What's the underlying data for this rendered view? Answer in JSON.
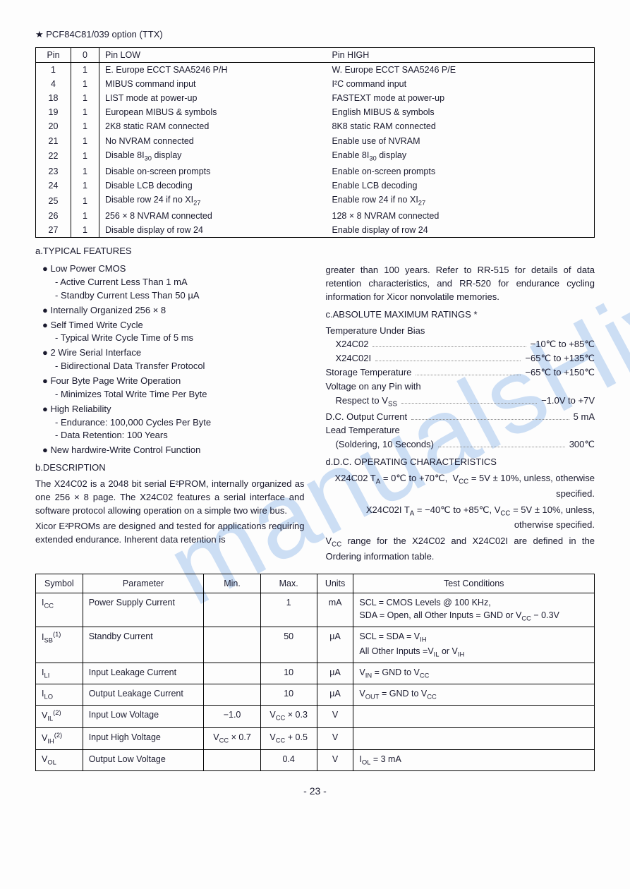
{
  "heading": "★ PCF84C81/039 option (TTX)",
  "pinTable": {
    "headers": [
      "Pin",
      "0",
      "Pin LOW",
      "Pin HIGH"
    ],
    "rows": [
      [
        "1",
        "1",
        "E. Europe ECCT  SAA5246 P/H",
        "W. Europe ECCT SAA5246 P/E"
      ],
      [
        "4",
        "1",
        "MIBUS command input",
        "I²C command input"
      ],
      [
        "18",
        "1",
        "LIST mode at power-up",
        "FASTEXT mode at power-up"
      ],
      [
        "19",
        "1",
        "European MIBUS & symbols",
        "English MIBUS & symbols"
      ],
      [
        "20",
        "1",
        "2K8 static RAM connected",
        "8K8 static RAM connected"
      ],
      [
        "21",
        "1",
        "No NVRAM connected",
        "Enable use of NVRAM"
      ],
      [
        "22",
        "1",
        "Disable 8I₃₀ display",
        "Enable 8I₃₀ display"
      ],
      [
        "23",
        "1",
        "Disable on-screen prompts",
        "Enable on-screen prompts"
      ],
      [
        "24",
        "1",
        "Disable LCB decoding",
        "Enable LCB decoding"
      ],
      [
        "25",
        "1",
        "Disable row 24 if no XI₂₇",
        "Enable row 24 if no XI₂₇"
      ],
      [
        "26",
        "1",
        "256 × 8  NVRAM connected",
        "128 × 8 NVRAM connected"
      ],
      [
        "27",
        "1",
        "Disable display of row 24",
        "Enable display of row 24"
      ]
    ]
  },
  "sectA": "a.TYPICAL FEATURES",
  "features": [
    {
      "main": "Low Power CMOS",
      "subs": [
        "Active Current Less Than 1 mA",
        "Standby Current Less Than 50 µA"
      ]
    },
    {
      "main": "Internally Organized 256 × 8",
      "subs": []
    },
    {
      "main": "Self Timed Write Cycle",
      "subs": [
        "Typical Write Cycle Time of 5 ms"
      ]
    },
    {
      "main": "2 Wire Serial Interface",
      "subs": [
        "Bidirectional Data Transfer Protocol"
      ]
    },
    {
      "main": "Four Byte Page Write Operation",
      "subs": [
        "Minimizes Total Write Time Per Byte"
      ]
    },
    {
      "main": "High Reliability",
      "subs": [
        "Endurance: 100,000 Cycles Per Byte",
        "Data Retention: 100 Years"
      ]
    },
    {
      "main": "New hardwire-Write Control Function",
      "subs": []
    }
  ],
  "sectB": "b.DESCRIPTION",
  "descPara1": "The X24C02 is a 2048 bit serial E²PROM, internally organized as one 256 × 8 page. The X24C02 features a serial interface and software protocol allowing operation on a simple two wire bus.",
  "descPara2": "Xicor E²PROMs are designed and tested for applications requiring extended endurance. Inherent data retention is",
  "descCont": "greater than 100 years. Refer to RR-515 for details of data retention characteristics, and RR-520 for endurance cycling information for Xicor nonvolatile memories.",
  "sectC": "c.ABSOLUTE MAXIMUM RATINGS *",
  "ratings": {
    "tempBias": "Temperature Under Bias",
    "r1": {
      "label": "X24C02",
      "val": "−10℃ to +85℃"
    },
    "r2": {
      "label": "X24C02I",
      "val": "−65℃ to +135℃"
    },
    "r3": {
      "label": "Storage Temperature",
      "val": "−65℃ to +150℃"
    },
    "voltPin": "Voltage on any Pin with",
    "r4": {
      "label": "Respect to Vₛₛ",
      "val": "−1.0V  to +7V"
    },
    "r5": {
      "label": "D.C. Output Current",
      "val": "5 mA"
    },
    "leadTemp": "Lead Temperature",
    "r6": {
      "label": "(Soldering, 10 Seconds)",
      "val": "300℃"
    }
  },
  "sectD": "d.D.C. OPERATING CHARACTERISTICS",
  "dcNote1": "X24C02 T_A = 0℃ to +70℃,  V_CC = 5V ± 10%, unless, otherwise specified.",
  "dcNote2": "X24C02I T_A = −40℃ to +85℃, V_CC = 5V ± 10%, unless, otherwise specified.",
  "dcNote3": "V_CC range for the X24C02 and X24C02I are defined in the Ordering information table.",
  "dcTable": {
    "headers": [
      "Symbol",
      "Parameter",
      "Min.",
      "Max.",
      "Units",
      "Test Conditions"
    ],
    "rows": [
      {
        "sym": "I_CC",
        "param": "Power Supply Current",
        "min": "",
        "max": "1",
        "units": "mA",
        "cond": "SCL = CMOS Levels @ 100 KHz,\nSDA = Open, all Other Inputs = GND or  V_CC − 0.3V"
      },
      {
        "sym": "I_SB(1)",
        "param": "Standby Current",
        "min": "",
        "max": "50",
        "units": "µA",
        "cond": "SCL = SDA =  V_IH\nAll Other Inputs =V_IL or V_IH"
      },
      {
        "sym": "I_LI",
        "param": "Input Leakage Current",
        "min": "",
        "max": "10",
        "units": "µA",
        "cond": "V_IN = GND to V_CC"
      },
      {
        "sym": "I_LO",
        "param": "Output Leakage Current",
        "min": "",
        "max": "10",
        "units": "µA",
        "cond": "V_OUT = GND to V_CC"
      },
      {
        "sym": "V_IL(2)",
        "param": "Input Low Voltage",
        "min": "−1.0",
        "max": "V_CC × 0.3",
        "units": "V",
        "cond": ""
      },
      {
        "sym": "V_IH(2)",
        "param": "Input High Voltage",
        "min": "V_CC × 0.7",
        "max": "V_CC + 0.5",
        "units": "V",
        "cond": ""
      },
      {
        "sym": "V_OL",
        "param": "Output Low Voltage",
        "min": "",
        "max": "0.4",
        "units": "V",
        "cond": "I_OL = 3 mA"
      }
    ]
  },
  "pageNum": "- 23 -",
  "watermark": "manualsHive.com"
}
